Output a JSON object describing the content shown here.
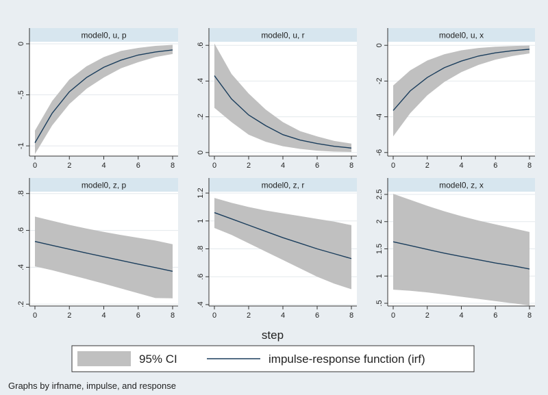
{
  "chart_data": {
    "type": "line",
    "figure": {
      "xlabel": "step",
      "note": "Graphs by irfname, impulse, and response",
      "legend": {
        "placement": "bottom",
        "ci_label": "95% CI",
        "line_label": "impulse-response function (irf)"
      },
      "colors": {
        "band": "#c0c0c0",
        "line": "#1a3d5c",
        "strip": "#d7e6ef",
        "background": "#e9eef2",
        "plot": "#ffffff"
      },
      "grid": true
    },
    "x": [
      0,
      1,
      2,
      3,
      4,
      5,
      6,
      7,
      8
    ],
    "xticks": [
      0,
      2,
      4,
      6,
      8
    ],
    "xticklabels": [
      "0",
      "2",
      "4",
      "6",
      "8"
    ],
    "panels": [
      {
        "title": "model0, u, p",
        "ylim": [
          -1.1,
          0.02
        ],
        "yticks": [
          0,
          -0.5,
          -1
        ],
        "yticklabels": [
          "0",
          "-.5",
          "-1"
        ],
        "irf": [
          -0.97,
          -0.68,
          -0.47,
          -0.33,
          -0.23,
          -0.16,
          -0.11,
          -0.08,
          -0.06
        ],
        "lower": [
          -1.08,
          -0.8,
          -0.59,
          -0.44,
          -0.33,
          -0.24,
          -0.18,
          -0.13,
          -0.1
        ],
        "upper": [
          -0.85,
          -0.56,
          -0.35,
          -0.22,
          -0.13,
          -0.07,
          -0.04,
          -0.02,
          -0.01
        ]
      },
      {
        "title": "model0, u, r",
        "ylim": [
          -0.02,
          0.62
        ],
        "yticks": [
          0,
          0.2,
          0.4,
          0.6
        ],
        "yticklabels": [
          "0",
          ".2",
          ".4",
          ".6"
        ],
        "irf": [
          0.43,
          0.3,
          0.21,
          0.15,
          0.1,
          0.07,
          0.05,
          0.035,
          0.025
        ],
        "lower": [
          0.25,
          0.17,
          0.1,
          0.06,
          0.035,
          0.02,
          0.01,
          0.005,
          0.003
        ],
        "upper": [
          0.61,
          0.44,
          0.33,
          0.24,
          0.17,
          0.12,
          0.09,
          0.065,
          0.05
        ]
      },
      {
        "title": "model0, u, x",
        "ylim": [
          -6.2,
          0.2
        ],
        "yticks": [
          0,
          -2,
          -4,
          -6
        ],
        "yticklabels": [
          "0",
          "-2",
          "-4",
          "-6"
        ],
        "irf": [
          -3.65,
          -2.55,
          -1.8,
          -1.25,
          -0.88,
          -0.6,
          -0.42,
          -0.3,
          -0.22
        ],
        "lower": [
          -5.1,
          -3.8,
          -2.8,
          -2.05,
          -1.5,
          -1.1,
          -0.8,
          -0.6,
          -0.45
        ],
        "upper": [
          -2.25,
          -1.4,
          -0.85,
          -0.5,
          -0.28,
          -0.15,
          -0.08,
          -0.04,
          -0.01
        ]
      },
      {
        "title": "model0, z, p",
        "ylim": [
          0.19,
          0.81
        ],
        "yticks": [
          0.2,
          0.4,
          0.6,
          0.8
        ],
        "yticklabels": [
          ".2",
          ".4",
          ".6",
          ".8"
        ],
        "irf": [
          0.54,
          0.519,
          0.498,
          0.477,
          0.457,
          0.437,
          0.417,
          0.398,
          0.378
        ],
        "lower": [
          0.405,
          0.384,
          0.36,
          0.336,
          0.311,
          0.285,
          0.259,
          0.233,
          0.232
        ],
        "upper": [
          0.675,
          0.652,
          0.63,
          0.61,
          0.592,
          0.575,
          0.56,
          0.545,
          0.525
        ]
      },
      {
        "title": "model0, z, r",
        "ylim": [
          0.39,
          1.21
        ],
        "yticks": [
          0.4,
          0.6,
          0.8,
          1,
          1.2
        ],
        "yticklabels": [
          ".4",
          ".6",
          ".8",
          "1",
          "1.2"
        ],
        "irf": [
          1.06,
          1.015,
          0.97,
          0.925,
          0.88,
          0.84,
          0.8,
          0.765,
          0.73
        ],
        "lower": [
          0.95,
          0.9,
          0.84,
          0.78,
          0.72,
          0.66,
          0.6,
          0.55,
          0.51
        ],
        "upper": [
          1.165,
          1.13,
          1.1,
          1.075,
          1.055,
          1.035,
          1.015,
          0.995,
          0.97
        ]
      },
      {
        "title": "model0, z, x",
        "ylim": [
          0.45,
          2.55
        ],
        "yticks": [
          0.5,
          1,
          1.5,
          2,
          2.5
        ],
        "yticklabels": [
          ".5",
          "1",
          "1.5",
          "2",
          "2.5"
        ],
        "irf": [
          1.63,
          1.56,
          1.49,
          1.42,
          1.36,
          1.3,
          1.24,
          1.19,
          1.13
        ],
        "lower": [
          0.75,
          0.73,
          0.7,
          0.66,
          0.62,
          0.58,
          0.54,
          0.5,
          0.46
        ],
        "upper": [
          2.51,
          2.4,
          2.29,
          2.19,
          2.1,
          2.02,
          1.95,
          1.88,
          1.81
        ]
      }
    ]
  }
}
